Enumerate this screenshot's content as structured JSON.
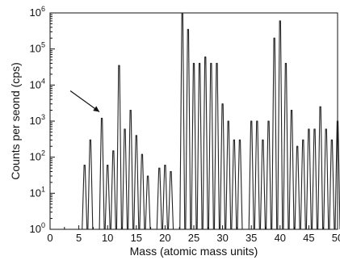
{
  "chart_data": {
    "type": "line",
    "xlabel": "Mass (atomic mass units)",
    "ylabel": "Counts per seond (cps)",
    "x_axis": {
      "scale": "linear",
      "range": [
        0,
        50
      ],
      "ticks": [
        "0",
        "5",
        "10",
        "15",
        "20",
        "25",
        "30",
        "35",
        "40",
        "45",
        "50"
      ]
    },
    "y_axis": {
      "scale": "log",
      "range": [
        1,
        1000000
      ],
      "ticks": [
        {
          "base": "10",
          "exp": "0"
        },
        {
          "base": "10",
          "exp": "1"
        },
        {
          "base": "10",
          "exp": "2"
        },
        {
          "base": "10",
          "exp": "3"
        },
        {
          "base": "10",
          "exp": "4"
        },
        {
          "base": "10",
          "exp": "5"
        },
        {
          "base": "10",
          "exp": "6"
        }
      ]
    },
    "grid": false,
    "legend": "none",
    "annotations": [
      {
        "type": "arrow",
        "points_to_mass": 9,
        "points_to_counts": 1200
      }
    ],
    "series": [
      {
        "peaks": [
          {
            "x": 6,
            "y": 60
          },
          {
            "x": 7,
            "y": 300
          },
          {
            "x": 9,
            "y": 1200
          },
          {
            "x": 10,
            "y": 60
          },
          {
            "x": 11,
            "y": 150
          },
          {
            "x": 12,
            "y": 35000
          },
          {
            "x": 13,
            "y": 600
          },
          {
            "x": 14,
            "y": 2000
          },
          {
            "x": 15,
            "y": 400
          },
          {
            "x": 16,
            "y": 120
          },
          {
            "x": 17,
            "y": 30
          },
          {
            "x": 19,
            "y": 50
          },
          {
            "x": 20,
            "y": 60
          },
          {
            "x": 21,
            "y": 40
          },
          {
            "x": 23,
            "y": 1000000
          },
          {
            "x": 24,
            "y": 350000
          },
          {
            "x": 25,
            "y": 40000
          },
          {
            "x": 26,
            "y": 40000
          },
          {
            "x": 27,
            "y": 60000
          },
          {
            "x": 28,
            "y": 40000
          },
          {
            "x": 29,
            "y": 40000
          },
          {
            "x": 30,
            "y": 3000
          },
          {
            "x": 31,
            "y": 1000
          },
          {
            "x": 32,
            "y": 300
          },
          {
            "x": 33,
            "y": 300
          },
          {
            "x": 35,
            "y": 1000
          },
          {
            "x": 36,
            "y": 1000
          },
          {
            "x": 37,
            "y": 300
          },
          {
            "x": 38,
            "y": 1000
          },
          {
            "x": 39,
            "y": 200000
          },
          {
            "x": 40,
            "y": 600000
          },
          {
            "x": 41,
            "y": 40000
          },
          {
            "x": 42,
            "y": 2000
          },
          {
            "x": 43,
            "y": 200
          },
          {
            "x": 44,
            "y": 300
          },
          {
            "x": 45,
            "y": 600
          },
          {
            "x": 46,
            "y": 600
          },
          {
            "x": 47,
            "y": 2500
          },
          {
            "x": 48,
            "y": 600
          },
          {
            "x": 49,
            "y": 300
          },
          {
            "x": 50,
            "y": 1000
          }
        ]
      }
    ]
  }
}
